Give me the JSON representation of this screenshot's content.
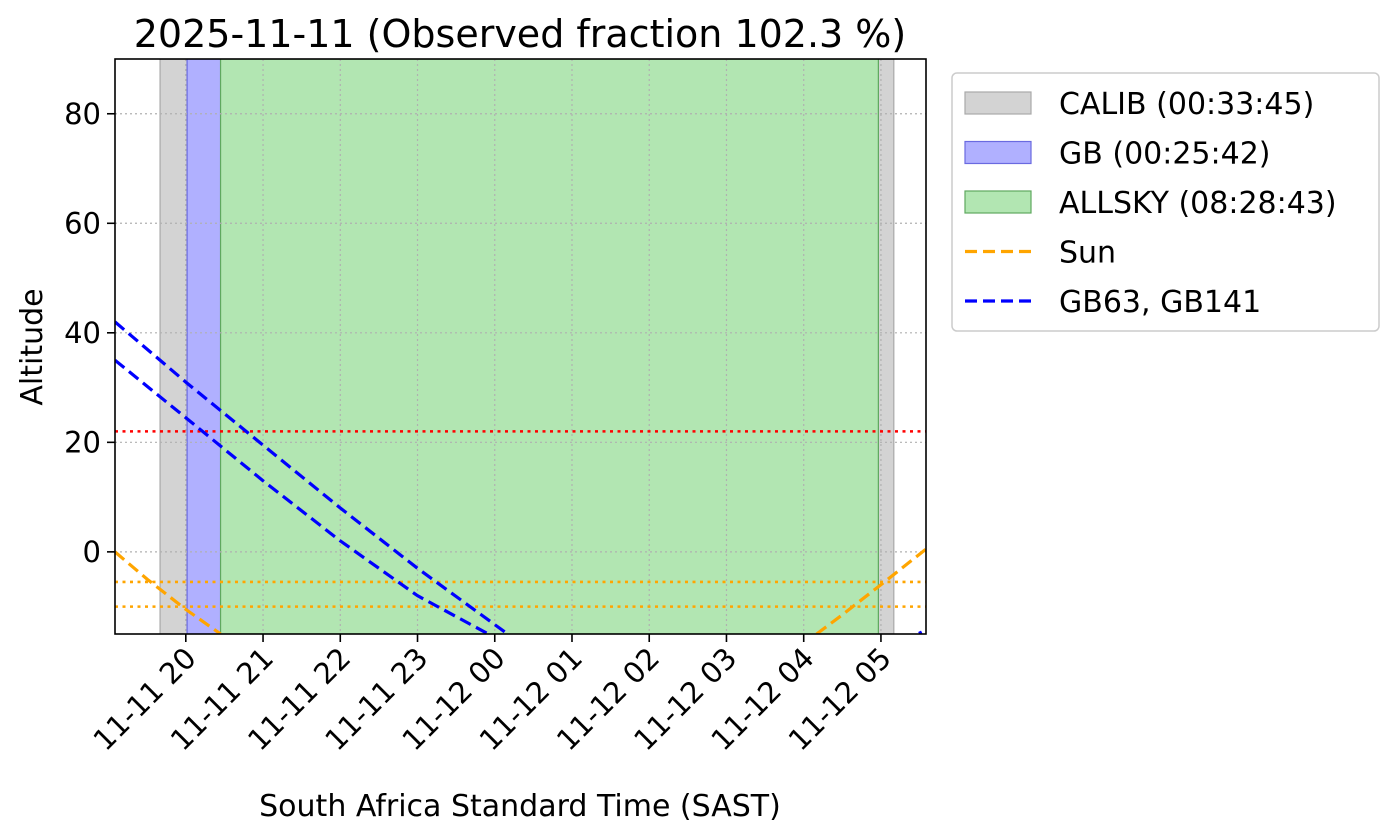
{
  "chart_data": {
    "type": "line",
    "title": "2025-11-11 (Observed fraction 102.3 %)",
    "xlabel": "South Africa Standard Time (SAST)",
    "ylabel": "Altitude",
    "x_axis_type": "time",
    "xlim": [
      "2025-11-11 19:05",
      "2025-11-12 05:35"
    ],
    "ylim": [
      -15,
      90
    ],
    "x_tick_labels": [
      {
        "t": "2025-11-11 20:00",
        "label": "11-11 20"
      },
      {
        "t": "2025-11-11 21:00",
        "label": "11-11 21"
      },
      {
        "t": "2025-11-11 22:00",
        "label": "11-11 22"
      },
      {
        "t": "2025-11-11 23:00",
        "label": "11-11 23"
      },
      {
        "t": "2025-11-12 00:00",
        "label": "11-12 00"
      },
      {
        "t": "2025-11-12 01:00",
        "label": "11-12 01"
      },
      {
        "t": "2025-11-12 02:00",
        "label": "11-12 02"
      },
      {
        "t": "2025-11-12 03:00",
        "label": "11-12 03"
      },
      {
        "t": "2025-11-12 04:00",
        "label": "11-12 04"
      },
      {
        "t": "2025-11-12 05:00",
        "label": "11-12 05"
      }
    ],
    "y_ticks": [
      0,
      20,
      40,
      60,
      80
    ],
    "grid": true,
    "legend_position": "outside-right",
    "spans": [
      {
        "name": "CALIB (00:33:45)",
        "color": "#d3d3d3",
        "edge": "#a9a9a9",
        "ranges": [
          [
            "2025-11-11 19:40",
            "2025-11-11 20:01"
          ],
          [
            "2025-11-12 04:58",
            "2025-11-12 05:10"
          ]
        ]
      },
      {
        "name": "GB (00:25:42)",
        "color": "#b0b0ff",
        "edge": "#6a6ae0",
        "ranges": [
          [
            "2025-11-11 20:01",
            "2025-11-11 20:27"
          ]
        ]
      },
      {
        "name": "ALLSKY (08:28:43)",
        "color": "#b2e6b2",
        "edge": "#5fa85f",
        "ranges": [
          [
            "2025-11-11 20:27",
            "2025-11-12 04:58"
          ]
        ]
      }
    ],
    "series": [
      {
        "name": "Sun",
        "color": "#ffa500",
        "style": "dashed",
        "segments": [
          [
            {
              "x": "2025-11-11 19:05",
              "y": 0
            },
            {
              "x": "2025-11-11 19:30",
              "y": -5
            },
            {
              "x": "2025-11-11 20:00",
              "y": -10.5
            },
            {
              "x": "2025-11-11 20:27",
              "y": -15
            }
          ],
          [
            {
              "x": "2025-11-12 04:10",
              "y": -15
            },
            {
              "x": "2025-11-12 04:30",
              "y": -11.5
            },
            {
              "x": "2025-11-12 05:00",
              "y": -6
            },
            {
              "x": "2025-11-12 05:35",
              "y": 0.5
            }
          ]
        ]
      },
      {
        "name": "GB63, GB141",
        "color": "#0000ff",
        "style": "dashed",
        "segments": [
          [
            {
              "x": "2025-11-11 19:05",
              "y": 42
            },
            {
              "x": "2025-11-11 20:00",
              "y": 31
            },
            {
              "x": "2025-11-11 21:00",
              "y": 19.5
            },
            {
              "x": "2025-11-11 22:00",
              "y": 8
            },
            {
              "x": "2025-11-11 23:00",
              "y": -3
            },
            {
              "x": "2025-11-12 00:10",
              "y": -15
            }
          ],
          [
            {
              "x": "2025-11-11 19:05",
              "y": 35
            },
            {
              "x": "2025-11-11 20:00",
              "y": 24.5
            },
            {
              "x": "2025-11-11 21:00",
              "y": 13
            },
            {
              "x": "2025-11-11 22:00",
              "y": 2
            },
            {
              "x": "2025-11-11 23:00",
              "y": -8
            },
            {
              "x": "2025-11-11 23:55",
              "y": -15
            }
          ],
          [
            {
              "x": "2025-11-12 05:30",
              "y": -14.5
            },
            {
              "x": "2025-11-12 05:31",
              "y": -15
            }
          ]
        ]
      }
    ],
    "hlines": [
      {
        "y": 22,
        "color": "#ff0000",
        "style": "dotted"
      },
      {
        "y": -5.5,
        "color": "#ffa500",
        "style": "dotted"
      },
      {
        "y": -10,
        "color": "#ffa500",
        "style": "dotted"
      }
    ],
    "legend": [
      {
        "label": "CALIB (00:33:45)",
        "kind": "patch",
        "color": "#d3d3d3",
        "edge": "#a9a9a9"
      },
      {
        "label": "GB (00:25:42)",
        "kind": "patch",
        "color": "#b0b0ff",
        "edge": "#6a6ae0"
      },
      {
        "label": "ALLSKY (08:28:43)",
        "kind": "patch",
        "color": "#b2e6b2",
        "edge": "#5fa85f"
      },
      {
        "label": "Sun",
        "kind": "line",
        "color": "#ffa500"
      },
      {
        "label": "GB63, GB141",
        "kind": "line",
        "color": "#0000ff"
      }
    ]
  }
}
